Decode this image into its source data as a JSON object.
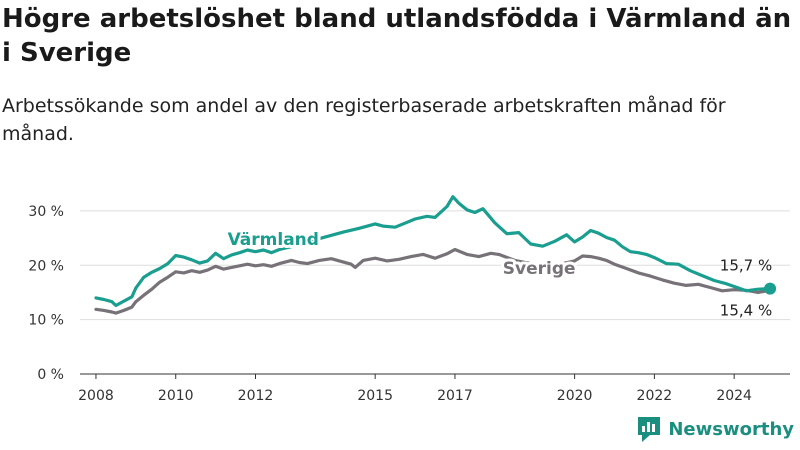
{
  "header": {
    "title": "Högre arbetslöshet bland utlandsfödda i Värmland än i Sverige",
    "subtitle": "Arbetssökande som andel av den registerbaserade arbetskraften månad för månad."
  },
  "brand": {
    "name": "Newsworthy",
    "color": "#1a8f80"
  },
  "chart_data": {
    "type": "line",
    "title": "Högre arbetslöshet bland utlandsfödda i Värmland än i Sverige",
    "subtitle": "Arbetssökande som andel av den registerbaserade arbetskraften månad för månad.",
    "xlabel": "",
    "ylabel": "",
    "xlim": [
      2007.6,
      2025.4
    ],
    "ylim": [
      0,
      32
    ],
    "x_ticks": [
      2008,
      2010,
      2012,
      2015,
      2017,
      2020,
      2022,
      2024
    ],
    "y_ticks": [
      {
        "value": 0,
        "label": "0 %"
      },
      {
        "value": 10,
        "label": "10 %"
      },
      {
        "value": 20,
        "label": "20 %"
      },
      {
        "value": 30,
        "label": "30 %"
      }
    ],
    "grid": "horizontal",
    "legend": "inline labels",
    "series": [
      {
        "name": "Värmland",
        "color": "#1a9e8f",
        "end_label": "15,7 %",
        "x": [
          2008.0,
          2008.2,
          2008.4,
          2008.5,
          2008.7,
          2008.9,
          2009.0,
          2009.2,
          2009.4,
          2009.6,
          2009.8,
          2010.0,
          2010.2,
          2010.4,
          2010.6,
          2010.8,
          2011.0,
          2011.2,
          2011.4,
          2011.6,
          2011.8,
          2012.0,
          2012.2,
          2012.4,
          2012.6,
          2013.0,
          2013.4,
          2013.8,
          2014.2,
          2014.6,
          2015.0,
          2015.2,
          2015.5,
          2015.8,
          2016.0,
          2016.3,
          2016.5,
          2016.8,
          2016.95,
          2017.1,
          2017.3,
          2017.5,
          2017.7,
          2018.0,
          2018.3,
          2018.6,
          2018.9,
          2019.2,
          2019.5,
          2019.8,
          2020.0,
          2020.2,
          2020.4,
          2020.6,
          2020.8,
          2021.0,
          2021.2,
          2021.4,
          2021.6,
          2021.8,
          2022.0,
          2022.3,
          2022.6,
          2022.9,
          2023.2,
          2023.5,
          2023.8,
          2024.0,
          2024.3,
          2024.6,
          2024.9
        ],
        "y": [
          14.0,
          13.7,
          13.3,
          12.6,
          13.4,
          14.2,
          15.8,
          17.8,
          18.7,
          19.4,
          20.3,
          21.8,
          21.5,
          21.0,
          20.4,
          20.8,
          22.2,
          21.2,
          21.9,
          22.3,
          22.8,
          22.5,
          22.8,
          22.3,
          22.9,
          23.6,
          24.5,
          25.3,
          26.1,
          26.8,
          27.6,
          27.2,
          27.0,
          27.9,
          28.5,
          29.0,
          28.8,
          30.8,
          32.6,
          31.4,
          30.2,
          29.7,
          30.4,
          27.8,
          25.8,
          26.0,
          23.9,
          23.5,
          24.4,
          25.6,
          24.3,
          25.2,
          26.4,
          25.9,
          25.1,
          24.6,
          23.4,
          22.5,
          22.3,
          22.0,
          21.4,
          20.3,
          20.2,
          19.0,
          18.1,
          17.2,
          16.6,
          16.1,
          15.3,
          15.6,
          15.7
        ]
      },
      {
        "name": "Sverige",
        "color": "#777277",
        "end_label": "15,4 %",
        "x": [
          2008.0,
          2008.2,
          2008.4,
          2008.5,
          2008.7,
          2008.9,
          2009.0,
          2009.2,
          2009.4,
          2009.6,
          2009.8,
          2010.0,
          2010.2,
          2010.4,
          2010.6,
          2010.8,
          2011.0,
          2011.2,
          2011.4,
          2011.6,
          2011.8,
          2012.0,
          2012.2,
          2012.4,
          2012.6,
          2012.9,
          2013.1,
          2013.3,
          2013.6,
          2013.9,
          2014.1,
          2014.4,
          2014.5,
          2014.7,
          2015.0,
          2015.3,
          2015.6,
          2015.9,
          2016.2,
          2016.5,
          2016.8,
          2017.0,
          2017.3,
          2017.6,
          2017.9,
          2018.1,
          2018.5,
          2018.9,
          2019.3,
          2019.7,
          2020.0,
          2020.2,
          2020.4,
          2020.6,
          2020.8,
          2021.0,
          2021.3,
          2021.6,
          2021.9,
          2022.2,
          2022.5,
          2022.8,
          2023.1,
          2023.4,
          2023.7,
          2024.0,
          2024.3,
          2024.6,
          2024.9
        ],
        "y": [
          11.9,
          11.7,
          11.4,
          11.2,
          11.7,
          12.3,
          13.3,
          14.5,
          15.6,
          16.9,
          17.8,
          18.8,
          18.6,
          19.0,
          18.7,
          19.1,
          19.8,
          19.3,
          19.6,
          19.9,
          20.2,
          19.9,
          20.1,
          19.8,
          20.3,
          20.9,
          20.5,
          20.3,
          20.9,
          21.2,
          20.8,
          20.2,
          19.6,
          20.9,
          21.3,
          20.8,
          21.1,
          21.6,
          22.0,
          21.3,
          22.1,
          22.9,
          22.0,
          21.6,
          22.2,
          22.0,
          20.9,
          20.3,
          19.8,
          20.3,
          20.8,
          21.7,
          21.6,
          21.3,
          20.9,
          20.2,
          19.4,
          18.6,
          18.0,
          17.3,
          16.7,
          16.3,
          16.5,
          15.9,
          15.3,
          15.5,
          15.4,
          15.0,
          15.4
        ]
      }
    ]
  }
}
